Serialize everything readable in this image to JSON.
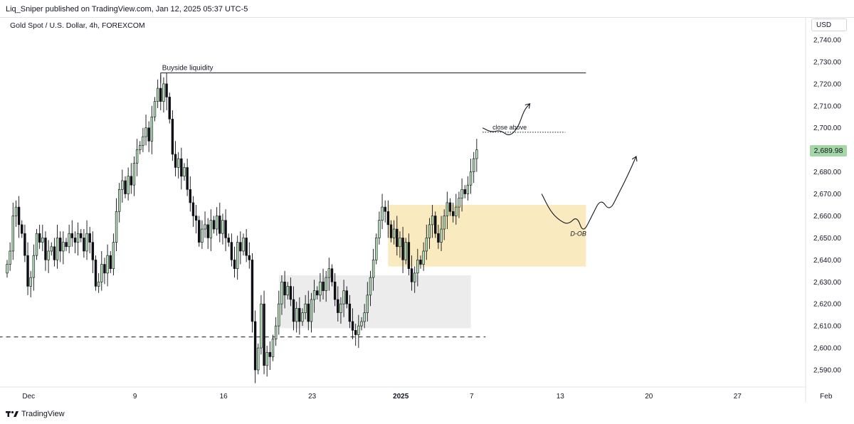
{
  "header": {
    "byline": "Liq_Sniper published on TradingView.com, Jan 12, 2025 05:37 UTC-5"
  },
  "symbol": {
    "title": "Gold Spot / U.S. Dollar, 4h, FOREXCOM"
  },
  "axis": {
    "currency": "USD"
  },
  "last_price": "2,689.98",
  "footer": {
    "brand": "TradingView"
  },
  "colors": {
    "up": "#b2dfb4",
    "down": "#0c0e14",
    "wick": "#0c0e14",
    "zone_yellow": "#f9eac0",
    "zone_gray": "#ececec",
    "last_price_bg": "#a5d6a7"
  },
  "chart_data": {
    "type": "candlestick",
    "timeframe": "4h",
    "ylim": [
      2584,
      2748
    ],
    "y_ticks": [
      {
        "value": 2590,
        "label": "2,590.00"
      },
      {
        "value": 2600,
        "label": "2,600.00"
      },
      {
        "value": 2610,
        "label": "2,610.00"
      },
      {
        "value": 2620,
        "label": "2,620.00"
      },
      {
        "value": 2630,
        "label": "2,630.00"
      },
      {
        "value": 2640,
        "label": "2,640.00"
      },
      {
        "value": 2650,
        "label": "2,650.00"
      },
      {
        "value": 2660,
        "label": "2,660.00"
      },
      {
        "value": 2670,
        "label": "2,670.00"
      },
      {
        "value": 2680,
        "label": "2,680.00"
      },
      {
        "value": 2690,
        "label": "2,690.00"
      },
      {
        "value": 2700,
        "label": "2,700.00"
      },
      {
        "value": 2710,
        "label": "2,710.00"
      },
      {
        "value": 2720,
        "label": "2,720.00"
      },
      {
        "value": 2730,
        "label": "2,730.00"
      },
      {
        "value": 2740,
        "label": "2,740.00"
      }
    ],
    "x_ticks": [
      {
        "bar": 2,
        "label": "Dec",
        "bold": false
      },
      {
        "bar": 38,
        "label": "9",
        "bold": false
      },
      {
        "bar": 68,
        "label": "16",
        "bold": false
      },
      {
        "bar": 98,
        "label": "23",
        "bold": false
      },
      {
        "bar": 128,
        "label": "2025",
        "bold": true
      },
      {
        "bar": 152,
        "label": "7",
        "bold": false
      },
      {
        "bar": 182,
        "label": "13",
        "bold": false
      },
      {
        "bar": 212,
        "label": "20",
        "bold": false
      },
      {
        "bar": 242,
        "label": "27",
        "bold": false
      },
      {
        "bar": 272,
        "label": "Feb",
        "bold": false
      }
    ],
    "closes": [
      2638,
      2644,
      2660,
      2664,
      2656,
      2652,
      2642,
      2628,
      2632,
      2642,
      2652,
      2648,
      2650,
      2640,
      2644,
      2646,
      2640,
      2650,
      2644,
      2648,
      2646,
      2652,
      2650,
      2648,
      2652,
      2650,
      2644,
      2652,
      2648,
      2640,
      2628,
      2630,
      2638,
      2634,
      2642,
      2636,
      2648,
      2662,
      2672,
      2676,
      2670,
      2678,
      2674,
      2684,
      2690,
      2692,
      2696,
      2700,
      2694,
      2705,
      2712,
      2718,
      2712,
      2720,
      2714,
      2704,
      2688,
      2682,
      2686,
      2678,
      2682,
      2672,
      2666,
      2660,
      2658,
      2648,
      2654,
      2656,
      2650,
      2658,
      2654,
      2660,
      2652,
      2658,
      2650,
      2648,
      2640,
      2636,
      2648,
      2644,
      2650,
      2642,
      2640,
      2612,
      2590,
      2600,
      2620,
      2592,
      2598,
      2596,
      2604,
      2610,
      2620,
      2630,
      2624,
      2628,
      2622,
      2612,
      2618,
      2612,
      2616,
      2620,
      2612,
      2622,
      2626,
      2624,
      2630,
      2626,
      2632,
      2636,
      2630,
      2622,
      2616,
      2620,
      2626,
      2620,
      2612,
      2608,
      2606,
      2610,
      2612,
      2616,
      2624,
      2632,
      2640,
      2650,
      2658,
      2664,
      2662,
      2656,
      2650,
      2654,
      2646,
      2650,
      2640,
      2648,
      2636,
      2630,
      2634,
      2640,
      2638,
      2644,
      2650,
      2656,
      2660,
      2652,
      2648,
      2654,
      2660,
      2666,
      2662,
      2660,
      2664,
      2668,
      2672,
      2670,
      2674,
      2680,
      2686,
      2690
    ],
    "bar_spacing": 4.15,
    "x_origin": 10,
    "horizontal_lines": [
      {
        "label": "Buyside liquidity",
        "value": 2725,
        "from_bar": 52,
        "to_bar": 196,
        "style": "solid"
      },
      {
        "label": "",
        "value": 2605,
        "from_bar": -3,
        "to_bar": 162,
        "style": "dashed"
      },
      {
        "label": "close above",
        "value": 2698,
        "from_bar": 161,
        "to_bar": 189,
        "style": "dotted"
      }
    ],
    "zones": [
      {
        "label": "D-OB",
        "y1": 2637,
        "y2": 2665,
        "from_bar": 129,
        "to_bar": 196,
        "color": "yellow"
      },
      {
        "label": "",
        "y1": 2609,
        "y2": 2633,
        "from_bar": 92,
        "to_bar": 157,
        "color": "gray"
      }
    ],
    "projections": [
      {
        "points": [
          [
            161,
            2700
          ],
          [
            164,
            2698
          ],
          [
            167,
            2699
          ],
          [
            170,
            2696
          ],
          [
            173,
            2700
          ],
          [
            175,
            2708
          ],
          [
            177,
            2711
          ]
        ],
        "arrow": true
      },
      {
        "points": [
          [
            181,
            2670
          ],
          [
            184,
            2662
          ],
          [
            187,
            2658
          ],
          [
            190,
            2656
          ],
          [
            193,
            2660
          ],
          [
            195,
            2652
          ],
          [
            198,
            2660
          ],
          [
            201,
            2668
          ],
          [
            204,
            2662
          ],
          [
            207,
            2670
          ],
          [
            210,
            2678
          ],
          [
            213,
            2687
          ]
        ],
        "arrow": true
      }
    ]
  }
}
